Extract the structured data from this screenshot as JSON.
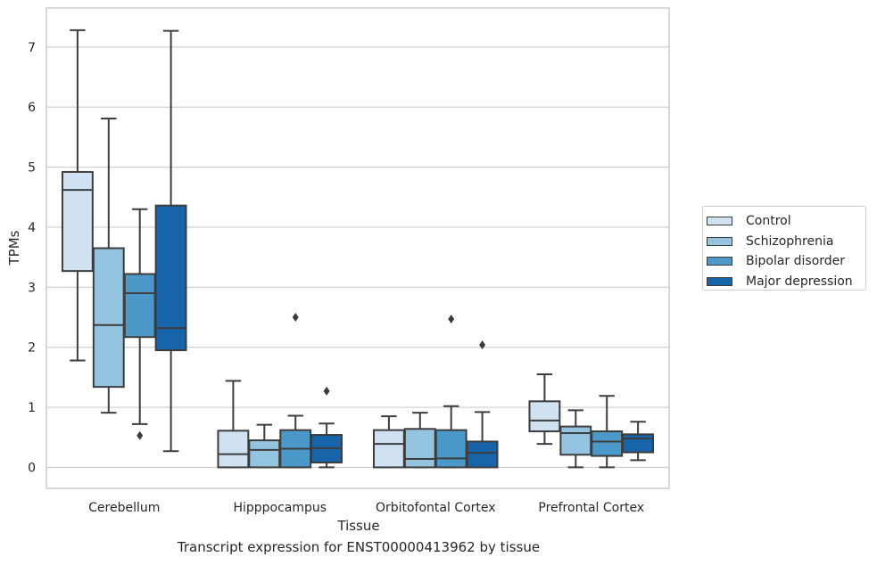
{
  "chart_data": {
    "type": "box",
    "title": "",
    "caption": "Transcript expression for ENST00000413962 by tissue",
    "xlabel": "Tissue",
    "ylabel": "TPMs",
    "ylim": [
      -0.35,
      7.65
    ],
    "yticks": [
      0,
      1,
      2,
      3,
      4,
      5,
      6,
      7
    ],
    "grid": true,
    "legend_position": "right",
    "categories": [
      "Cerebellum",
      "Hipppocampus",
      "Orbitofontal Cortex",
      "Prefrontal Cortex"
    ],
    "series": [
      {
        "name": "Control",
        "color": "#d0e1f2",
        "boxes": [
          {
            "whislo": 1.78,
            "q1": 3.27,
            "med": 4.62,
            "q3": 4.92,
            "whishi": 7.28,
            "fliers": []
          },
          {
            "whislo": 0.0,
            "q1": 0.0,
            "med": 0.22,
            "q3": 0.61,
            "whishi": 1.44,
            "fliers": []
          },
          {
            "whislo": 0.0,
            "q1": 0.0,
            "med": 0.39,
            "q3": 0.62,
            "whishi": 0.85,
            "fliers": []
          },
          {
            "whislo": 0.39,
            "q1": 0.6,
            "med": 0.78,
            "q3": 1.1,
            "whishi": 1.55,
            "fliers": []
          }
        ]
      },
      {
        "name": "Schizophrenia",
        "color": "#94c4df",
        "boxes": [
          {
            "whislo": 0.91,
            "q1": 1.34,
            "med": 2.37,
            "q3": 3.65,
            "whishi": 5.81,
            "fliers": []
          },
          {
            "whislo": 0.0,
            "q1": 0.0,
            "med": 0.29,
            "q3": 0.45,
            "whishi": 0.71,
            "fliers": []
          },
          {
            "whislo": 0.0,
            "q1": 0.0,
            "med": 0.14,
            "q3": 0.64,
            "whishi": 0.91,
            "fliers": []
          },
          {
            "whislo": 0.0,
            "q1": 0.21,
            "med": 0.57,
            "q3": 0.68,
            "whishi": 0.95,
            "fliers": []
          }
        ]
      },
      {
        "name": "Bipolar disorder",
        "color": "#4b98c9",
        "boxes": [
          {
            "whislo": 0.72,
            "q1": 2.17,
            "med": 2.9,
            "q3": 3.22,
            "whishi": 4.3,
            "fliers": [
              0.53
            ]
          },
          {
            "whislo": 0.0,
            "q1": 0.0,
            "med": 0.31,
            "q3": 0.62,
            "whishi": 0.86,
            "fliers": [
              2.5
            ]
          },
          {
            "whislo": 0.0,
            "q1": 0.0,
            "med": 0.15,
            "q3": 0.62,
            "whishi": 1.02,
            "fliers": [
              2.47
            ]
          },
          {
            "whislo": 0.0,
            "q1": 0.19,
            "med": 0.43,
            "q3": 0.6,
            "whishi": 1.19,
            "fliers": []
          }
        ]
      },
      {
        "name": "Major depression",
        "color": "#1764ab",
        "boxes": [
          {
            "whislo": 0.27,
            "q1": 1.95,
            "med": 2.32,
            "q3": 4.36,
            "whishi": 7.27,
            "fliers": []
          },
          {
            "whislo": 0.0,
            "q1": 0.08,
            "med": 0.32,
            "q3": 0.54,
            "whishi": 0.73,
            "fliers": [
              1.27
            ]
          },
          {
            "whislo": 0.0,
            "q1": 0.0,
            "med": 0.24,
            "q3": 0.43,
            "whishi": 0.92,
            "fliers": [
              2.04
            ]
          },
          {
            "whislo": 0.12,
            "q1": 0.25,
            "med": 0.48,
            "q3": 0.55,
            "whishi": 0.76,
            "fliers": []
          }
        ]
      }
    ]
  }
}
